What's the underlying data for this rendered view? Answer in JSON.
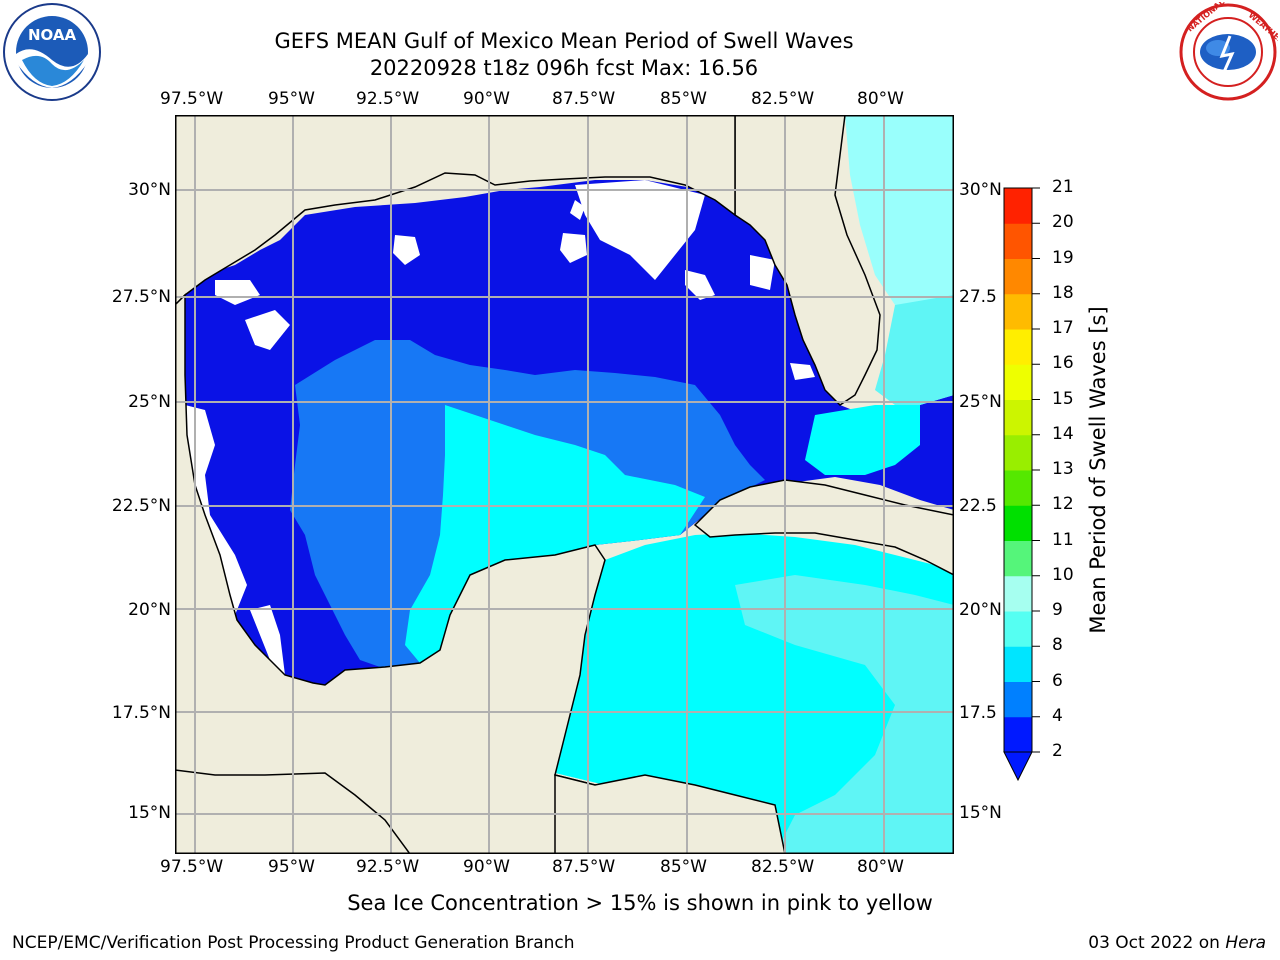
{
  "title": {
    "line1": "GEFS MEAN Gulf of Mexico Mean Period of Swell Waves",
    "line2": "20220928 t18z 096h fcst   Max: 16.56"
  },
  "logos": {
    "left": "NOAA",
    "left_ring": "NATIONAL OCEANIC AND ATMOSPHERIC ADMINISTRATION · U.S. DEPARTMENT OF COMMERCE",
    "right_ring": "NATIONAL WEATHER SERVICE"
  },
  "map": {
    "lon_labels": [
      "97.5°W",
      "95°W",
      "92.5°W",
      "90°W",
      "87.5°W",
      "85°W",
      "82.5°W",
      "80°W"
    ],
    "lat_labels_left": [
      "30°N",
      "27.5°N",
      "25°N",
      "22.5°N",
      "20°N",
      "17.5°N",
      "15°N"
    ],
    "lat_labels_right": [
      "30°N",
      "27.5",
      "25°N",
      "22.5",
      "20°N",
      "17.5",
      "15°N"
    ],
    "colors": {
      "land": "#efeddc",
      "ocean_deep": "#0a12e6",
      "ocean_blue": "#1778f5",
      "ocean_cyan": "#00ffff",
      "ocean_light": "#5ff5f5",
      "ocean_pale": "#99fffc",
      "grid": "#b0b0b0"
    }
  },
  "colorbar": {
    "label": "Mean Period of Swell Waves [s]",
    "ticks": [
      "2",
      "4",
      "6",
      "8",
      "9",
      "10",
      "11",
      "12",
      "13",
      "14",
      "15",
      "16",
      "17",
      "18",
      "19",
      "20",
      "21"
    ],
    "colors": [
      "#0019ff",
      "#0080ff",
      "#00e5ff",
      "#55fff2",
      "#a6fff0",
      "#55f57a",
      "#00e000",
      "#55e800",
      "#99ee00",
      "#ccf500",
      "#eeff00",
      "#ffee00",
      "#ffbb00",
      "#ff8800",
      "#ff5500",
      "#ff2200"
    ]
  },
  "note": "Sea Ice Concentration > 15% is shown in pink to yellow",
  "footer": {
    "left": "NCEP/EMC/Verification Post Processing Product Generation Branch",
    "date": "03 Oct 2022 on ",
    "machine": "Hera"
  }
}
